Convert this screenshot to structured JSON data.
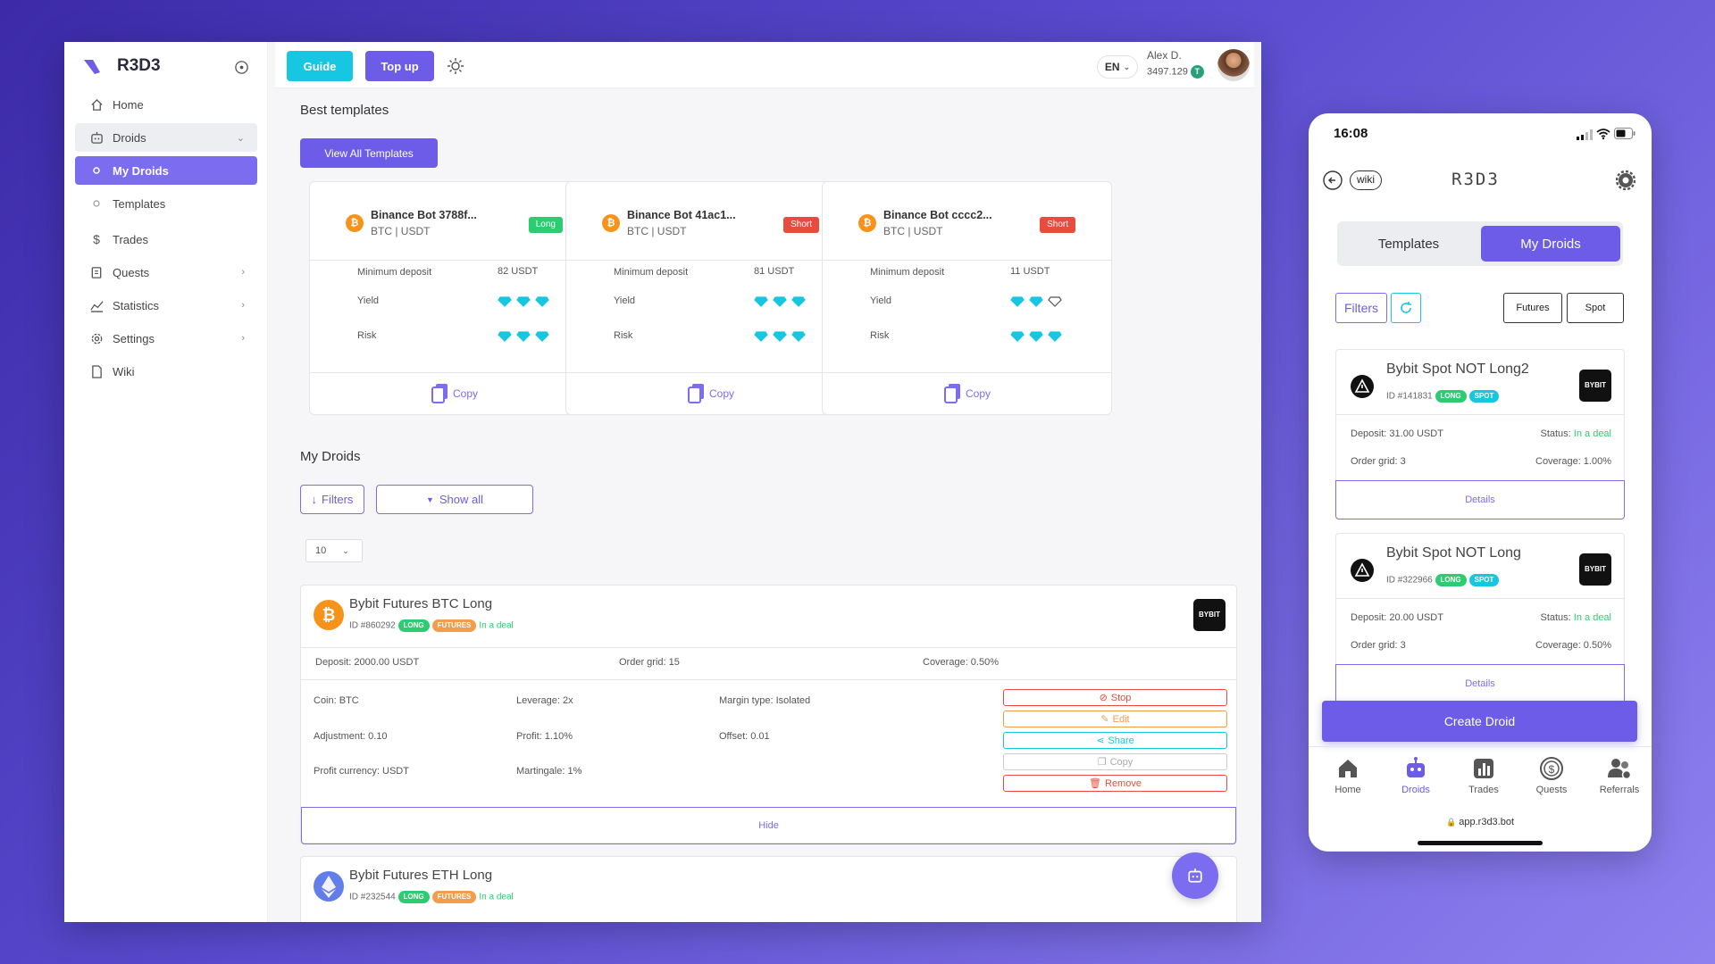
{
  "colors": {
    "accent": "#6c5ce7",
    "cyan": "#17c6e0",
    "long": "#2ecc71",
    "short": "#e74c3c",
    "futures": "#f39c4a"
  },
  "app": {
    "name": "R3D3"
  },
  "sidebar": {
    "items": [
      {
        "label": "Home",
        "icon": "home-icon"
      },
      {
        "label": "Droids",
        "icon": "robot-icon"
      },
      {
        "label": "My Droids",
        "icon": "dot-icon"
      },
      {
        "label": "Templates",
        "icon": "dot-icon"
      },
      {
        "label": "Trades",
        "icon": "dollar-icon"
      },
      {
        "label": "Quests",
        "icon": "quest-icon"
      },
      {
        "label": "Statistics",
        "icon": "chart-icon"
      },
      {
        "label": "Settings",
        "icon": "gear-icon"
      },
      {
        "label": "Wiki",
        "icon": "document-icon"
      }
    ]
  },
  "topbar": {
    "guide": "Guide",
    "topup": "Top up",
    "lang": "EN",
    "user_name": "Alex D.",
    "balance": "3497.129",
    "token": "T"
  },
  "templates": {
    "title": "Best templates",
    "view_all": "View All Templates",
    "min_deposit_label": "Minimum deposit",
    "yield_label": "Yield",
    "risk_label": "Risk",
    "copy_label": "Copy",
    "cards": [
      {
        "name": "Binance Bot 3788f...",
        "pair": "BTC | USDT",
        "side": "Long",
        "min_deposit": "82 USDT",
        "yield": 3,
        "risk": 3
      },
      {
        "name": "Binance Bot 41ac1...",
        "pair": "BTC | USDT",
        "side": "Short",
        "min_deposit": "81 USDT",
        "yield": 3,
        "risk": 3
      },
      {
        "name": "Binance Bot cccc2...",
        "pair": "BTC | USDT",
        "side": "Short",
        "min_deposit": "11 USDT",
        "yield": 2,
        "risk": 3
      }
    ]
  },
  "my_droids": {
    "title": "My Droids",
    "filters": "Filters",
    "show_all": "Show all",
    "page_size": "10",
    "droids": [
      {
        "name": "Bybit Futures BTC Long",
        "id": "ID #860292",
        "tags": [
          "LONG",
          "FUTURES"
        ],
        "status": "In a deal",
        "deposit": "Deposit: 2000.00 USDT",
        "order_grid": "Order grid: 15",
        "coverage": "Coverage: 0.50%",
        "coin": "Coin: BTC",
        "leverage": "Leverage: 2x",
        "margin": "Margin type: Isolated",
        "adjustment": "Adjustment: 0.10",
        "profit": "Profit: 1.10%",
        "offset": "Offset: 0.01",
        "profit_currency": "Profit currency: USDT",
        "martingale": "Martingale: 1%",
        "actions": [
          "Stop",
          "Edit",
          "Share",
          "Copy",
          "Remove"
        ],
        "hide": "Hide",
        "exchange": "BYBIT"
      },
      {
        "name": "Bybit Futures ETH Long",
        "id": "ID #232544",
        "tags": [
          "LONG",
          "FUTURES"
        ],
        "status": "In a deal"
      }
    ]
  },
  "phone": {
    "time": "16:08",
    "wiki": "wiki",
    "logo": "R3D3",
    "tabs": [
      "Templates",
      "My Droids"
    ],
    "filters": "Filters",
    "chips": [
      "Futures",
      "Spot"
    ],
    "droids": [
      {
        "name": "Bybit Spot NOT Long2",
        "id": "ID #141831",
        "tags": [
          "LONG",
          "SPOT"
        ],
        "deposit": "Deposit: 31.00 USDT",
        "status_label": "Status:",
        "status": "In a deal",
        "grid": "Order grid: 3",
        "coverage": "Coverage: 1.00%",
        "details": "Details",
        "exchange": "BYBIT"
      },
      {
        "name": "Bybit Spot NOT Long",
        "id": "ID #322966",
        "tags": [
          "LONG",
          "SPOT"
        ],
        "deposit": "Deposit: 20.00 USDT",
        "status_label": "Status:",
        "status": "In a deal",
        "grid": "Order grid: 3",
        "coverage": "Coverage: 0.50%",
        "details": "Details",
        "exchange": "BYBIT"
      }
    ],
    "create": "Create Droid",
    "nav": [
      "Home",
      "Droids",
      "Trades",
      "Quests",
      "Referrals"
    ],
    "url": "app.r3d3.bot"
  }
}
